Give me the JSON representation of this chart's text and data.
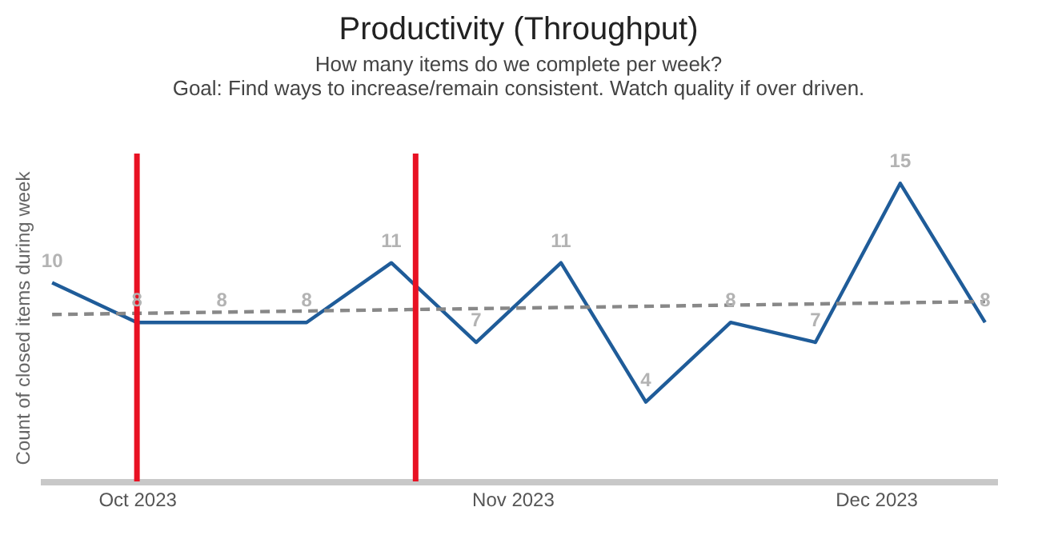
{
  "chart_data": {
    "type": "line",
    "title": "Productivity (Throughput)",
    "subtitle": "How many items do we complete per week?\nGoal: Find ways to increase/remain consistent. Watch quality if over driven.",
    "ylabel": "Count of closed items during week",
    "x": [
      "2023-09-24",
      "2023-10-01",
      "2023-10-08",
      "2023-10-15",
      "2023-10-22",
      "2023-10-29",
      "2023-11-05",
      "2023-11-12",
      "2023-11-19",
      "2023-11-26",
      "2023-12-03",
      "2023-12-10"
    ],
    "series": [
      {
        "color": "#1f5c99",
        "values": [
          10,
          8,
          8,
          8,
          11,
          7,
          11,
          4,
          8,
          7,
          15,
          8
        ],
        "data_labels": true,
        "marker": "none",
        "line_style": "solid"
      },
      {
        "type": "line",
        "color": "#888888",
        "line_style": "dashed",
        "x": [
          "2023-09-24",
          "2023-12-10"
        ],
        "values": [
          8.4,
          9.05
        ]
      }
    ],
    "xlim": [
      "2023-09-23",
      "2023-12-11"
    ],
    "xticks": [
      {
        "value": "2023-10-01",
        "label": "Oct 2023"
      },
      {
        "value": "2023-11-01",
        "label": "Nov 2023"
      },
      {
        "value": "2023-12-01",
        "label": "Dec 2023"
      }
    ],
    "ylim": [
      0,
      16.5
    ],
    "tick_labels": "x",
    "grid": false,
    "ref_lines": [
      {
        "axis": "x",
        "value": "2023-10-01",
        "color": "#e81123"
      },
      {
        "axis": "x",
        "value": "2023-10-24",
        "color": "#e81123"
      }
    ]
  }
}
